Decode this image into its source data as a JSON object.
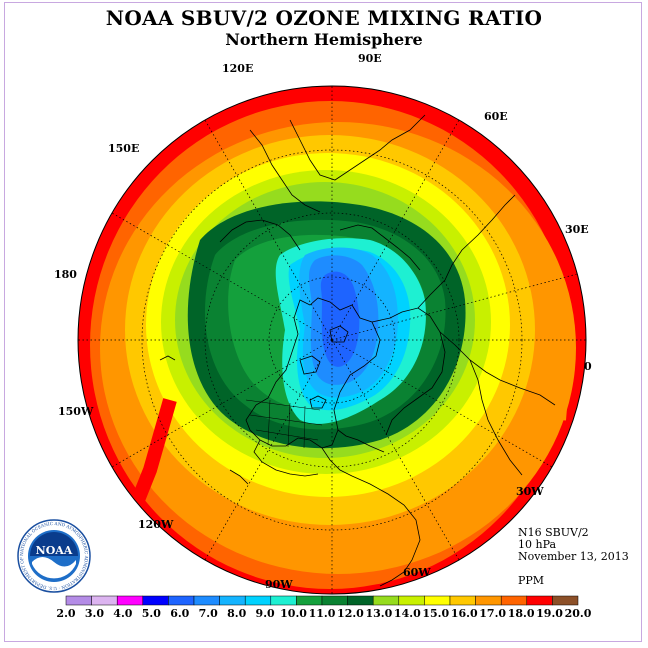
{
  "title": "NOAA SBUV/2 OZONE MIXING RATIO",
  "subtitle": "Northern Hemisphere",
  "longitude_labels": [
    "120E",
    "90E",
    "60E",
    "150E",
    "30E",
    "180",
    "0",
    "150W",
    "30W",
    "120W",
    "60W",
    "90W"
  ],
  "info": {
    "instrument": "N16 SBUV/2",
    "level": "10 hPa",
    "date": "November 13, 2013"
  },
  "units": "PPM",
  "logo": {
    "text": "NOAA",
    "ring_text": "NATIONAL OCEANIC AND ATMOSPHERIC ADMINISTRATION · U.S. DEPARTMENT OF COMMERCE"
  },
  "colorbar": {
    "ticks": [
      "2.0",
      "3.0",
      "4.0",
      "5.0",
      "6.0",
      "7.0",
      "8.0",
      "9.0",
      "10.0",
      "11.0",
      "12.0",
      "13.0",
      "14.0",
      "15.0",
      "16.0",
      "17.0",
      "18.0",
      "19.0",
      "20.0"
    ],
    "colors": [
      "#b48ce6",
      "#dcb4f0",
      "#ff00ff",
      "#0000ff",
      "#1e64ff",
      "#1e8cff",
      "#14b4ff",
      "#00d2ff",
      "#1ef0d2",
      "#14a03c",
      "#0a8232",
      "#006428",
      "#96dc1e",
      "#c8f000",
      "#ffff00",
      "#ffc800",
      "#ff9600",
      "#ff6400",
      "#ff0000",
      "#8c5028"
    ]
  },
  "colors": {
    "background": "#ffffff",
    "frame": "#c8a8e0"
  }
}
